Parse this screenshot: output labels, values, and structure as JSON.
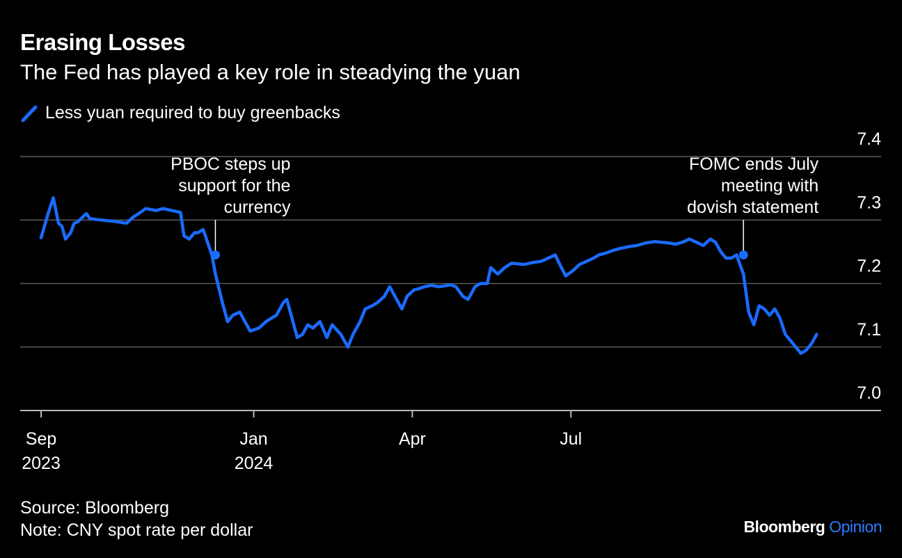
{
  "chart_data": {
    "type": "line",
    "title": "Erasing Losses",
    "subtitle": "The Fed has played a key role in steadying the yuan",
    "legend": {
      "label": "Less yuan required to buy greenbacks",
      "placement": "top-left"
    },
    "series": [
      {
        "name": "CNY spot rate per dollar",
        "color": "#1a6bff",
        "points": [
          [
            "2023-09-01",
            7.272
          ],
          [
            "2023-09-05",
            7.31
          ],
          [
            "2023-09-08",
            7.335
          ],
          [
            "2023-09-11",
            7.295
          ],
          [
            "2023-09-13",
            7.29
          ],
          [
            "2023-09-15",
            7.27
          ],
          [
            "2023-09-18",
            7.28
          ],
          [
            "2023-09-20",
            7.295
          ],
          [
            "2023-09-22",
            7.297
          ],
          [
            "2023-09-25",
            7.305
          ],
          [
            "2023-09-27",
            7.31
          ],
          [
            "2023-09-29",
            7.302
          ],
          [
            "2023-10-06",
            7.3
          ],
          [
            "2023-10-13",
            7.298
          ],
          [
            "2023-10-20",
            7.295
          ],
          [
            "2023-10-24",
            7.305
          ],
          [
            "2023-10-27",
            7.31
          ],
          [
            "2023-10-31",
            7.318
          ],
          [
            "2023-11-06",
            7.315
          ],
          [
            "2023-11-10",
            7.318
          ],
          [
            "2023-11-15",
            7.315
          ],
          [
            "2023-11-20",
            7.312
          ],
          [
            "2023-11-22",
            7.275
          ],
          [
            "2023-11-25",
            7.27
          ],
          [
            "2023-11-28",
            7.28
          ],
          [
            "2023-11-30",
            7.28
          ],
          [
            "2023-12-03",
            7.285
          ],
          [
            "2023-12-08",
            7.245
          ],
          [
            "2023-12-10",
            7.215
          ],
          [
            "2023-12-14",
            7.17
          ],
          [
            "2023-12-17",
            7.14
          ],
          [
            "2023-12-20",
            7.15
          ],
          [
            "2023-12-24",
            7.155
          ],
          [
            "2023-12-27",
            7.14
          ],
          [
            "2023-12-30",
            7.125
          ],
          [
            "2024-01-04",
            7.13
          ],
          [
            "2024-01-08",
            7.14
          ],
          [
            "2024-01-11",
            7.145
          ],
          [
            "2024-01-14",
            7.15
          ],
          [
            "2024-01-18",
            7.17
          ],
          [
            "2024-01-20",
            7.175
          ],
          [
            "2024-01-23",
            7.145
          ],
          [
            "2024-01-26",
            7.115
          ],
          [
            "2024-01-29",
            7.12
          ],
          [
            "2024-02-01",
            7.135
          ],
          [
            "2024-02-04",
            7.13
          ],
          [
            "2024-02-08",
            7.14
          ],
          [
            "2024-02-12",
            7.115
          ],
          [
            "2024-02-15",
            7.135
          ],
          [
            "2024-02-20",
            7.12
          ],
          [
            "2024-02-24",
            7.1
          ],
          [
            "2024-02-27",
            7.12
          ],
          [
            "2024-03-02",
            7.14
          ],
          [
            "2024-03-05",
            7.16
          ],
          [
            "2024-03-09",
            7.165
          ],
          [
            "2024-03-12",
            7.17
          ],
          [
            "2024-03-16",
            7.18
          ],
          [
            "2024-03-19",
            7.195
          ],
          [
            "2024-03-23",
            7.175
          ],
          [
            "2024-03-26",
            7.16
          ],
          [
            "2024-03-29",
            7.18
          ],
          [
            "2024-04-02",
            7.19
          ],
          [
            "2024-04-05",
            7.192
          ],
          [
            "2024-04-08",
            7.195
          ],
          [
            "2024-04-12",
            7.197
          ],
          [
            "2024-04-16",
            7.195
          ],
          [
            "2024-04-19",
            7.196
          ],
          [
            "2024-04-23",
            7.198
          ],
          [
            "2024-04-26",
            7.195
          ],
          [
            "2024-04-30",
            7.18
          ],
          [
            "2024-05-03",
            7.175
          ],
          [
            "2024-05-07",
            7.195
          ],
          [
            "2024-05-10",
            7.2
          ],
          [
            "2024-05-14",
            7.2
          ],
          [
            "2024-05-16",
            7.225
          ],
          [
            "2024-05-20",
            7.215
          ],
          [
            "2024-05-24",
            7.225
          ],
          [
            "2024-05-28",
            7.232
          ],
          [
            "2024-06-04",
            7.23
          ],
          [
            "2024-06-09",
            7.233
          ],
          [
            "2024-06-14",
            7.235
          ],
          [
            "2024-06-18",
            7.24
          ],
          [
            "2024-06-22",
            7.245
          ],
          [
            "2024-06-25",
            7.228
          ],
          [
            "2024-06-28",
            7.212
          ],
          [
            "2024-07-02",
            7.22
          ],
          [
            "2024-07-06",
            7.23
          ],
          [
            "2024-07-10",
            7.235
          ],
          [
            "2024-07-14",
            7.24
          ],
          [
            "2024-07-17",
            7.245
          ],
          [
            "2024-07-21",
            7.248
          ],
          [
            "2024-07-25",
            7.252
          ],
          [
            "2024-07-29",
            7.255
          ],
          [
            "2024-08-03",
            7.258
          ],
          [
            "2024-08-08",
            7.26
          ],
          [
            "2024-08-13",
            7.264
          ],
          [
            "2024-08-18",
            7.266
          ],
          [
            "2024-08-22",
            7.265
          ],
          [
            "2024-08-26",
            7.264
          ],
          [
            "2024-08-30",
            7.262
          ],
          [
            "2024-09-03",
            7.265
          ],
          [
            "2024-09-07",
            7.27
          ],
          [
            "2024-09-11",
            7.265
          ],
          [
            "2024-09-15",
            7.26
          ],
          [
            "2024-09-19",
            7.27
          ],
          [
            "2024-09-22",
            7.265
          ],
          [
            "2024-09-25",
            7.25
          ],
          [
            "2024-09-28",
            7.24
          ],
          [
            "2024-10-01",
            7.24
          ],
          [
            "2024-10-04",
            7.245
          ],
          [
            "2024-10-08",
            7.215
          ],
          [
            "2024-10-11",
            7.155
          ],
          [
            "2024-10-14",
            7.135
          ],
          [
            "2024-10-17",
            7.165
          ],
          [
            "2024-10-20",
            7.16
          ],
          [
            "2024-10-23",
            7.15
          ],
          [
            "2024-10-26",
            7.16
          ],
          [
            "2024-10-29",
            7.145
          ],
          [
            "2024-11-01",
            7.12
          ],
          [
            "2024-11-04",
            7.11
          ],
          [
            "2024-11-07",
            7.1
          ],
          [
            "2024-11-10",
            7.09
          ],
          [
            "2024-11-13",
            7.095
          ],
          [
            "2024-11-16",
            7.105
          ],
          [
            "2024-11-19",
            7.12
          ]
        ],
        "markers": [
          {
            "x": "2023-12-10",
            "y": 7.245,
            "label_lines": [
              "PBOC steps up",
              "support for the",
              "currency"
            ]
          },
          {
            "x": "2024-10-08",
            "y": 7.245,
            "label_lines": [
              "FOMC ends July",
              "meeting with",
              "dovish statement"
            ]
          }
        ]
      }
    ],
    "y_axis": {
      "ylim": [
        7.0,
        7.4
      ],
      "ticks": [
        "7.0",
        "7.1",
        "7.2",
        "7.3",
        "7.4"
      ],
      "position": "right",
      "grid": true
    },
    "x_axis": {
      "xlim": [
        "2023-08-20",
        "2024-12-26"
      ],
      "ticks": [
        {
          "date": "2023-09-01",
          "label": "Sep",
          "year": "2023"
        },
        {
          "date": "2024-01-01",
          "label": "Jan",
          "year": "2024"
        },
        {
          "date": "2024-04-01",
          "label": "Apr",
          "year": ""
        },
        {
          "date": "2024-07-01",
          "label": "Jul",
          "year": ""
        }
      ]
    },
    "source": "Source: Bloomberg",
    "note": "Note: CNY spot rate per dollar"
  },
  "branding": {
    "name": "Bloomberg",
    "suffix": "Opinion",
    "accent_color": "#2f7bff"
  }
}
